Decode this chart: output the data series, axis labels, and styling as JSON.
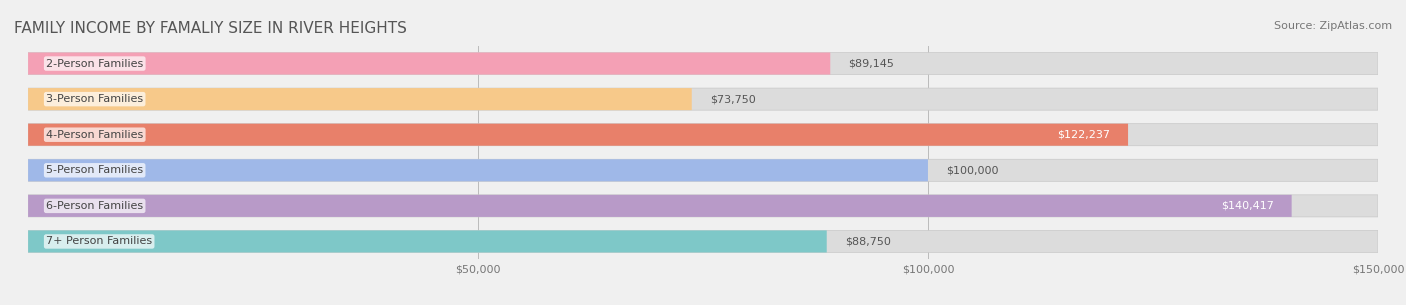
{
  "title": "FAMILY INCOME BY FAMALIY SIZE IN RIVER HEIGHTS",
  "source": "Source: ZipAtlas.com",
  "categories": [
    "2-Person Families",
    "3-Person Families",
    "4-Person Families",
    "5-Person Families",
    "6-Person Families",
    "7+ Person Families"
  ],
  "values": [
    89145,
    73750,
    122237,
    100000,
    140417,
    88750
  ],
  "bar_colors": [
    "#f4a0b5",
    "#f7c98a",
    "#e8806a",
    "#9fb8e8",
    "#b89ac8",
    "#7ec8c8"
  ],
  "bar_edge_colors": [
    "#e07090",
    "#e0a050",
    "#c05040",
    "#6090c8",
    "#8870a8",
    "#50a8a8"
  ],
  "label_colors": [
    "#555555",
    "#555555",
    "#ffffff",
    "#555555",
    "#ffffff",
    "#555555"
  ],
  "value_labels": [
    "$89,145",
    "$73,750",
    "$122,237",
    "$100,000",
    "$140,417",
    "$88,750"
  ],
  "xlim": [
    0,
    150000
  ],
  "xticks": [
    0,
    50000,
    100000,
    150000
  ],
  "xtick_labels": [
    "$50,000",
    "$100,000",
    "$150,000"
  ],
  "background_color": "#f0f0f0",
  "bar_bg_color": "#e8e8e8",
  "title_fontsize": 11,
  "source_fontsize": 8,
  "bar_label_fontsize": 8,
  "value_fontsize": 8
}
